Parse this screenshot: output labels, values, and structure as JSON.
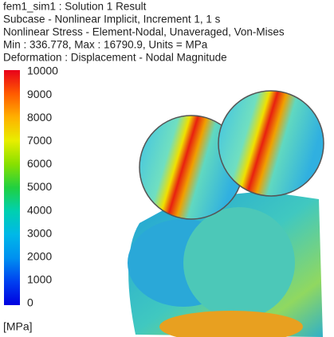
{
  "header": {
    "lines": [
      "fem1_sim1 : Solution 1 Result",
      "Subcase - Nonlinear Implicit, Increment 1, 1 s",
      "Nonlinear Stress - Element-Nodal, Unaveraged, Von-Mises",
      "Min : 336.778, Max : 16790.9, Units = MPa",
      "Deformation : Displacement - Nodal Magnitude"
    ]
  },
  "legend": {
    "labels": [
      10000,
      9000,
      8000,
      7000,
      6000,
      5000,
      4000,
      3000,
      2000,
      1000,
      0
    ],
    "unit": "[MPa]"
  }
}
